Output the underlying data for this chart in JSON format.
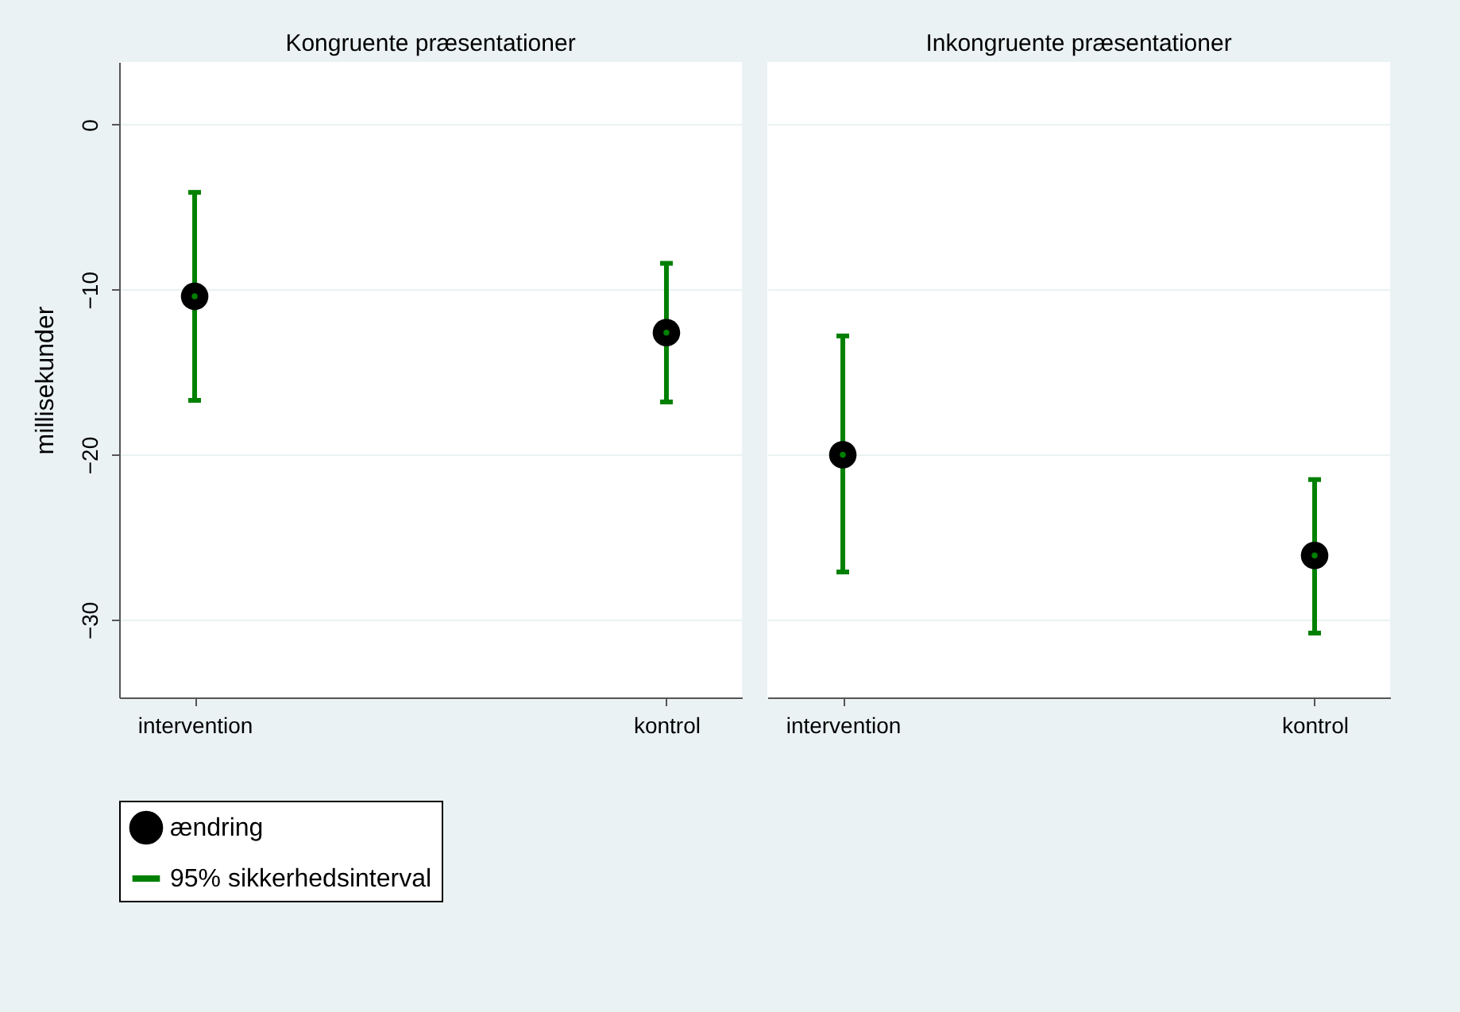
{
  "chart_data": [
    {
      "type": "scatter",
      "title": "Kongruente præsentationer",
      "categories": [
        "intervention",
        "kontrol"
      ],
      "ylabel": "millisekunder",
      "ylim": [
        -34.7,
        3.8
      ],
      "yticks": [
        0,
        -10,
        -20,
        -30
      ],
      "grid": "y",
      "legend": "bottom",
      "marker": "circle",
      "series": [
        {
          "name": "ændring",
          "color": "#000000",
          "values": [
            -10.4,
            -12.6
          ]
        },
        {
          "name": "95% sikkerhedsinterval",
          "color": "#008000",
          "marker": "none",
          "values": [
            -10.4,
            -12.6
          ],
          "errors": [
            [
              -16.7,
              -4.1
            ],
            [
              -16.8,
              -8.4
            ]
          ]
        }
      ]
    },
    {
      "type": "scatter",
      "title": "Inkongruente præsentationer",
      "categories": [
        "intervention",
        "kontrol"
      ],
      "ylim": [
        -34.7,
        3.8
      ],
      "yticks": [
        0,
        -10,
        -20,
        -30
      ],
      "tick_labels": "x",
      "grid": "y",
      "legend": "bottom",
      "marker": "circle",
      "series": [
        {
          "name": "ændring",
          "color": "#000000",
          "values": [
            -20.0,
            -26.1
          ]
        },
        {
          "name": "95% sikkerhedsinterval",
          "color": "#008000",
          "marker": "none",
          "values": [
            -20.0,
            -26.1
          ],
          "errors": [
            [
              -27.1,
              -12.8
            ],
            [
              -30.8,
              -21.5
            ]
          ]
        }
      ]
    }
  ]
}
